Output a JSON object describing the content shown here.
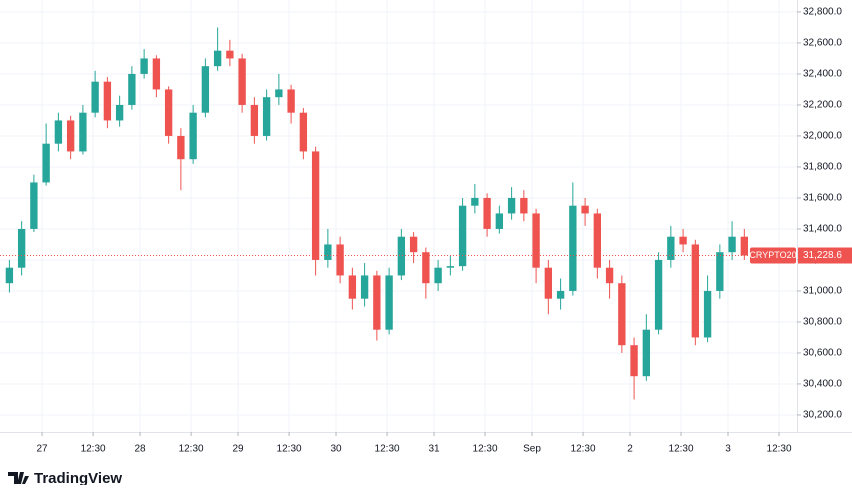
{
  "chart_data": {
    "type": "candlestick",
    "symbol": "CRYPTO20",
    "x": [
      -8,
      -5,
      -2,
      1,
      4,
      7,
      10,
      13,
      16,
      19,
      22,
      25,
      28,
      31,
      34,
      37,
      40,
      43,
      46,
      49,
      52,
      55,
      58,
      61,
      64,
      67,
      70,
      73,
      76,
      79,
      82,
      85,
      88,
      91,
      94,
      97,
      100,
      103,
      106,
      109,
      112,
      115,
      118,
      121,
      124,
      127,
      130,
      133,
      136,
      139,
      142,
      145,
      148,
      151,
      154,
      157,
      160,
      163,
      166,
      169,
      172
    ],
    "open": [
      31050,
      31150,
      31400,
      31700,
      31950,
      32100,
      31900,
      32150,
      32350,
      32100,
      32200,
      32400,
      32500,
      32300,
      32000,
      31850,
      32150,
      32450,
      32550,
      32500,
      32200,
      32000,
      32250,
      32300,
      32150,
      31900,
      31200,
      31300,
      31100,
      30950,
      31100,
      30750,
      31100,
      31350,
      31250,
      31050,
      31150,
      31160,
      31550,
      31600,
      31400,
      31500,
      31600,
      31500,
      31150,
      30950,
      31000,
      31550,
      31500,
      31150,
      31050,
      30650,
      30450,
      30750,
      31200,
      31350,
      31300,
      30700,
      31000,
      31250,
      31350
    ],
    "high": [
      31200,
      31450,
      31750,
      32080,
      32150,
      32130,
      32200,
      32420,
      32380,
      32260,
      32450,
      32560,
      32520,
      32320,
      32050,
      32200,
      32500,
      32700,
      32620,
      32530,
      32250,
      32300,
      32400,
      32330,
      32180,
      31930,
      31400,
      31350,
      31150,
      31180,
      31130,
      31150,
      31400,
      31380,
      31280,
      31200,
      31230,
      31600,
      31690,
      31630,
      31550,
      31670,
      31650,
      31530,
      31200,
      31080,
      31700,
      31600,
      31530,
      31200,
      31100,
      30700,
      30850,
      31250,
      31420,
      31400,
      31330,
      31100,
      31300,
      31450,
      31400
    ],
    "low": [
      30990,
      31100,
      31380,
      31680,
      31900,
      31850,
      31880,
      32120,
      32050,
      32060,
      32170,
      32370,
      32250,
      31950,
      31650,
      31820,
      32120,
      32420,
      32450,
      32150,
      31950,
      31970,
      32200,
      32080,
      31850,
      31100,
      31150,
      31050,
      30880,
      30900,
      30680,
      30720,
      31070,
      31180,
      30950,
      31000,
      31100,
      31130,
      31500,
      31350,
      31370,
      31460,
      31450,
      31050,
      30850,
      30880,
      30970,
      31420,
      31080,
      30950,
      30600,
      30300,
      30420,
      30720,
      31150,
      31250,
      30650,
      30670,
      30950,
      31200,
      31200
    ],
    "close": [
      31150,
      31400,
      31700,
      31950,
      32100,
      31900,
      32150,
      32350,
      32100,
      32200,
      32400,
      32500,
      32300,
      32000,
      31850,
      32150,
      32450,
      32550,
      32500,
      32200,
      32000,
      32250,
      32300,
      32150,
      31900,
      31200,
      31300,
      31100,
      30950,
      31100,
      30750,
      31100,
      31350,
      31250,
      31050,
      31150,
      31160,
      31550,
      31600,
      31400,
      31500,
      31600,
      31500,
      31150,
      30950,
      31000,
      31550,
      31500,
      31150,
      31050,
      30650,
      30450,
      30750,
      31200,
      31350,
      31300,
      30700,
      31000,
      31250,
      31350,
      31228.6
    ],
    "up_color": "#26a69a",
    "down_color": "#ef5350",
    "xlim": [
      -10.3,
      184.9
    ],
    "ylim": [
      30090,
      32877
    ],
    "xticks": [
      {
        "value": 0,
        "label": "27"
      },
      {
        "value": 12.5,
        "label": "12:30"
      },
      {
        "value": 24,
        "label": "28"
      },
      {
        "value": 36.5,
        "label": "12:30"
      },
      {
        "value": 48,
        "label": "29"
      },
      {
        "value": 60.5,
        "label": "12:30"
      },
      {
        "value": 72,
        "label": "30"
      },
      {
        "value": 84.5,
        "label": "12:30"
      },
      {
        "value": 96,
        "label": "31"
      },
      {
        "value": 108.5,
        "label": "12:30"
      },
      {
        "value": 120,
        "label": "Sep"
      },
      {
        "value": 132.5,
        "label": "12:30"
      },
      {
        "value": 144,
        "label": "2"
      },
      {
        "value": 156.5,
        "label": "12:30"
      },
      {
        "value": 168,
        "label": "3"
      },
      {
        "value": 180.5,
        "label": "12:30"
      }
    ],
    "yticks": [
      {
        "value": 30200,
        "label": "30,200.0"
      },
      {
        "value": 30400,
        "label": "30,400.0"
      },
      {
        "value": 30600,
        "label": "30,600.0"
      },
      {
        "value": 30800,
        "label": "30,800.0"
      },
      {
        "value": 31000,
        "label": "31,000.0"
      },
      {
        "value": 31200,
        "label": "31,200.0"
      },
      {
        "value": 31400,
        "label": "31,400.0"
      },
      {
        "value": 31600,
        "label": "31,600.0"
      },
      {
        "value": 31800,
        "label": "31,800.0"
      },
      {
        "value": 32000,
        "label": "32,000.0"
      },
      {
        "value": 32200,
        "label": "32,200.0"
      },
      {
        "value": 32400,
        "label": "32,400.0"
      },
      {
        "value": 32600,
        "label": "32,600.0"
      },
      {
        "value": 32800,
        "label": "32,800.0"
      }
    ],
    "grid": true,
    "last_price": {
      "value": 31228.6,
      "label": "31,228.6"
    }
  },
  "footer": {
    "brand": "TradingView"
  }
}
